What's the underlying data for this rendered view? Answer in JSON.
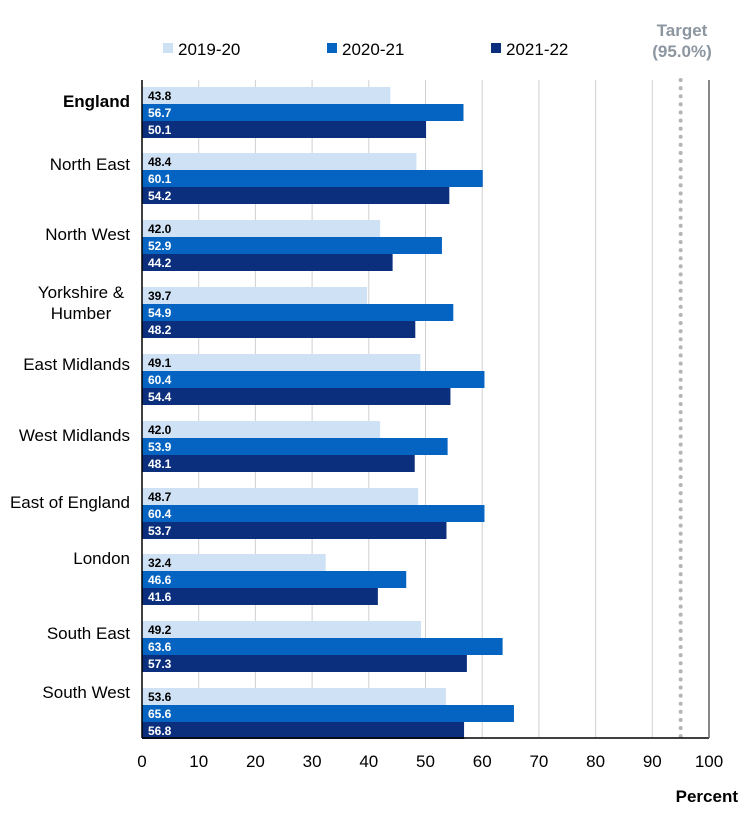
{
  "chart_data": {
    "type": "bar",
    "orientation": "horizontal",
    "categories": [
      "England",
      "North East",
      "North West",
      "Yorkshire & Humber",
      "East Midlands",
      "West Midlands",
      "East of England",
      "London",
      "South East",
      "South West"
    ],
    "category_lines": [
      [
        "England"
      ],
      [
        "North East"
      ],
      [
        "North West"
      ],
      [
        "Yorkshire &",
        "Humber"
      ],
      [
        "East Midlands"
      ],
      [
        "West Midlands"
      ],
      [
        "East of England"
      ],
      [
        "London"
      ],
      [
        "South East"
      ],
      [
        "South West"
      ]
    ],
    "bold_categories": [
      "England"
    ],
    "series": [
      {
        "name": "2019-20",
        "color": "#cfe2f5",
        "label_color": "#000000",
        "values": [
          43.8,
          48.4,
          42.0,
          39.7,
          49.1,
          42.0,
          48.7,
          32.4,
          49.2,
          53.6
        ]
      },
      {
        "name": "2020-21",
        "color": "#0563c1",
        "label_color": "#ffffff",
        "values": [
          56.7,
          60.1,
          52.9,
          54.9,
          60.4,
          53.9,
          60.4,
          46.6,
          63.6,
          65.6
        ]
      },
      {
        "name": "2021-22",
        "color": "#0b2f7d",
        "label_color": "#ffffff",
        "values": [
          50.1,
          54.2,
          44.2,
          48.2,
          54.4,
          48.1,
          53.7,
          41.6,
          57.3,
          56.8
        ]
      }
    ],
    "xlim": [
      0,
      100
    ],
    "xticks": [
      0,
      10,
      20,
      30,
      40,
      50,
      60,
      70,
      80,
      90,
      100
    ],
    "xlabel": "Percent",
    "grid": "vertical",
    "legend": "top",
    "target": {
      "value": 95,
      "label_lines": [
        "Target",
        "(95.0%)"
      ],
      "color": "#b5b5b5",
      "label_color": "#8c96a0"
    }
  }
}
